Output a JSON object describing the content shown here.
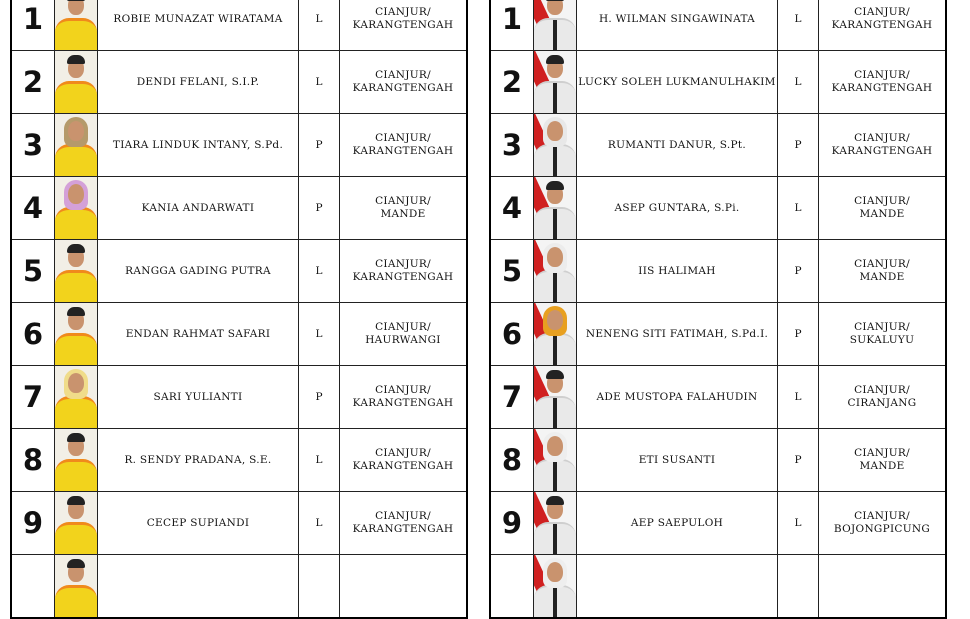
{
  "left_list": {
    "color_theme": "#f2d31c",
    "rows": [
      {
        "no": "1",
        "name": "ROBIE MUNAZAT WIRATAMA",
        "gender": "L",
        "region_line1": "CIANJUR/",
        "region_line2": "KARANGTENGAH",
        "photo": "male"
      },
      {
        "no": "2",
        "name": "DENDI FELANI, S.I.P.",
        "gender": "L",
        "region_line1": "CIANJUR/",
        "region_line2": "KARANGTENGAH",
        "photo": "male"
      },
      {
        "no": "3",
        "name": "TIARA LINDUK INTANY, S.Pd.",
        "gender": "P",
        "region_line1": "CIANJUR/",
        "region_line2": "KARANGTENGAH",
        "photo": "hijab",
        "hijab_color": "#b59a6a"
      },
      {
        "no": "4",
        "name": "KANIA ANDARWATI",
        "gender": "P",
        "region_line1": "CIANJUR/",
        "region_line2": "MANDE",
        "photo": "hijab",
        "hijab_color": "#d4a0d8"
      },
      {
        "no": "5",
        "name": "RANGGA GADING PUTRA",
        "gender": "L",
        "region_line1": "CIANJUR/",
        "region_line2": "KARANGTENGAH",
        "photo": "male"
      },
      {
        "no": "6",
        "name": "ENDAN RAHMAT SAFARI",
        "gender": "L",
        "region_line1": "CIANJUR/",
        "region_line2": "HAURWANGI",
        "photo": "male"
      },
      {
        "no": "7",
        "name": "SARI YULIANTI",
        "gender": "P",
        "region_line1": "CIANJUR/",
        "region_line2": "KARANGTENGAH",
        "photo": "hijab",
        "hijab_color": "#f0dc8a"
      },
      {
        "no": "8",
        "name": "R. SENDY PRADANA, S.E.",
        "gender": "L",
        "region_line1": "CIANJUR/",
        "region_line2": "KARANGTENGAH",
        "photo": "male"
      },
      {
        "no": "9",
        "name": "CECEP SUPIANDI",
        "gender": "L",
        "region_line1": "CIANJUR/",
        "region_line2": "KARANGTENGAH",
        "photo": "male"
      },
      {
        "no": "",
        "name": "",
        "gender": "",
        "region_line1": "",
        "region_line2": "",
        "photo": "male"
      }
    ]
  },
  "right_list": {
    "color_theme": "#ffffff",
    "rows": [
      {
        "no": "1",
        "name": "H. WILMAN SINGAWINATA",
        "gender": "L",
        "region_line1": "CIANJUR/",
        "region_line2": "KARANGTENGAH",
        "photo": "male"
      },
      {
        "no": "2",
        "name": "LUCKY SOLEH LUKMANULHAKIM",
        "gender": "L",
        "region_line1": "CIANJUR/",
        "region_line2": "KARANGTENGAH",
        "photo": "male"
      },
      {
        "no": "3",
        "name": "RUMANTI DANUR, S.Pt.",
        "gender": "P",
        "region_line1": "CIANJUR/",
        "region_line2": "KARANGTENGAH",
        "photo": "hijab",
        "hijab_color": "#e8e8e8"
      },
      {
        "no": "4",
        "name": "ASEP GUNTARA, S.Pi.",
        "gender": "L",
        "region_line1": "CIANJUR/",
        "region_line2": "MANDE",
        "photo": "male"
      },
      {
        "no": "5",
        "name": "IIS HALIMAH",
        "gender": "P",
        "region_line1": "CIANJUR/",
        "region_line2": "MANDE",
        "photo": "hijab",
        "hijab_color": "#ececec"
      },
      {
        "no": "6",
        "name": "NENENG SITI FATIMAH, S.Pd.I.",
        "gender": "P",
        "region_line1": "CIANJUR/",
        "region_line2": "SUKALUYU",
        "photo": "hijab",
        "hijab_color": "#e8a020"
      },
      {
        "no": "7",
        "name": "ADE MUSTOPA FALAHUDIN",
        "gender": "L",
        "region_line1": "CIANJUR/",
        "region_line2": "CIRANJANG",
        "photo": "male"
      },
      {
        "no": "8",
        "name": "ETI SUSANTI",
        "gender": "P",
        "region_line1": "CIANJUR/",
        "region_line2": "MANDE",
        "photo": "hijab",
        "hijab_color": "#eeeeee"
      },
      {
        "no": "9",
        "name": "AEP SAEPULOH",
        "gender": "L",
        "region_line1": "CIANJUR/",
        "region_line2": "BOJONGPICUNG",
        "photo": "male"
      },
      {
        "no": "",
        "name": "",
        "gender": "",
        "region_line1": "",
        "region_line2": "",
        "photo": "hijab",
        "hijab_color": "#eeeeee"
      }
    ]
  }
}
